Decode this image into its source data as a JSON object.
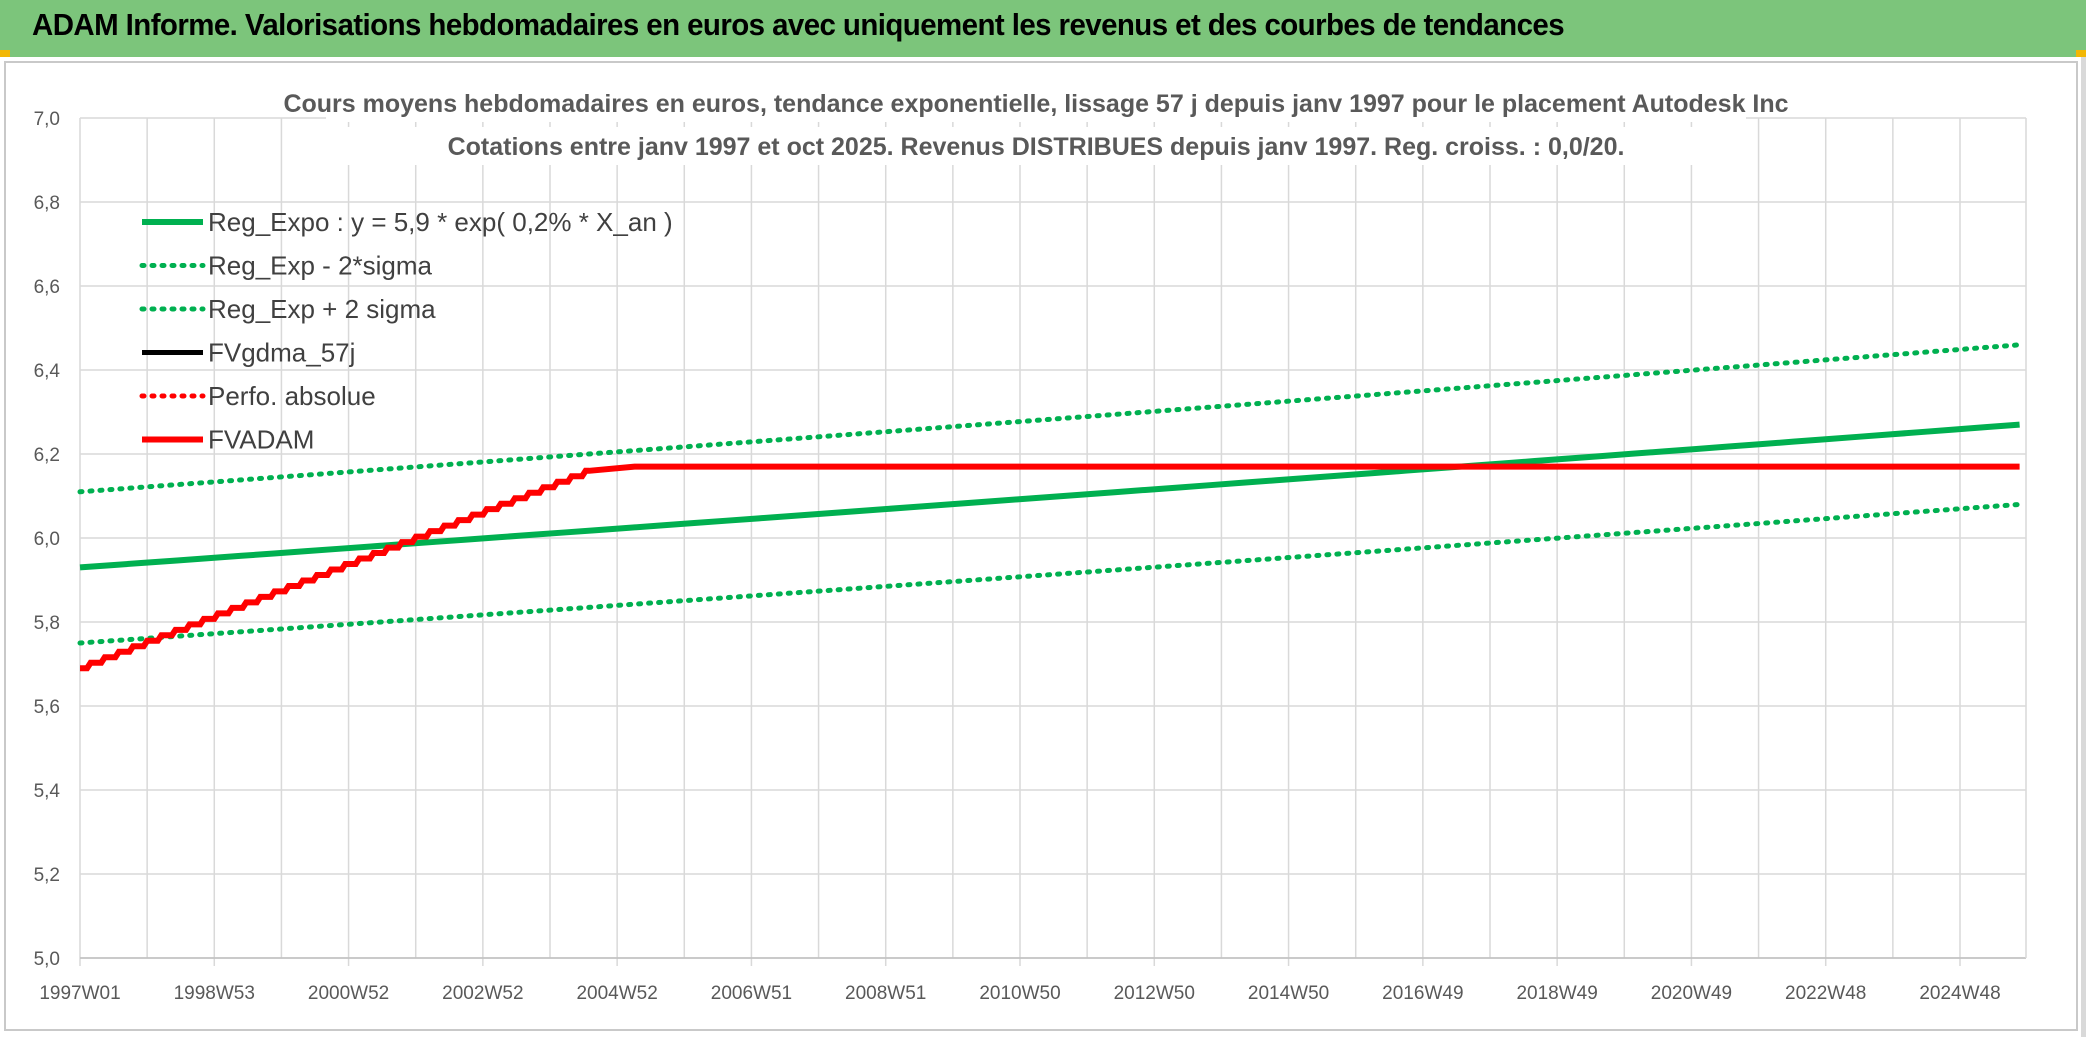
{
  "banner": {
    "title": "ADAM Informe. Valorisations hebdomadaires en euros avec uniquement les revenus et des courbes de tendances"
  },
  "colors": {
    "banner_bg": "#7cc57b",
    "green": "#00b050",
    "red": "#ff0000",
    "black": "#000000"
  },
  "chart_data": {
    "type": "line",
    "title_lines": [
      "Cours moyens hebdomadaires en euros, tendance exponentielle, lissage 57 j depuis janv 1997 pour le placement Autodesk Inc",
      "Cotations entre janv 1997 et oct 2025. Revenus DISTRIBUES depuis janv 1997. Reg. croiss. : 0,0/20."
    ],
    "x_tick_labels": [
      "1997W01",
      "1998W53",
      "2000W52",
      "2002W52",
      "2004W52",
      "2006W51",
      "2008W51",
      "2010W50",
      "2012W50",
      "2014W50",
      "2016W49",
      "2018W49",
      "2020W49",
      "2022W48",
      "2024W48"
    ],
    "x_range": [
      "1997W01",
      "2025W42"
    ],
    "y_ticks": [
      "5,0",
      "5,2",
      "5,4",
      "5,6",
      "5,8",
      "6,0",
      "6,2",
      "6,4",
      "6,6",
      "6,8",
      "7,0"
    ],
    "ylim": [
      5.0,
      7.0
    ],
    "grid": true,
    "legend_position": "top-left",
    "series": [
      {
        "name": "Reg_Expo : y = 5,9 * exp( 0,2% *  X_an )",
        "style": "solid-thick",
        "color": "#00b050",
        "points": [
          [
            "1997W01",
            5.93
          ],
          [
            "2025W42",
            6.27
          ]
        ]
      },
      {
        "name": "Reg_Exp - 2*sigma",
        "style": "dotted",
        "color": "#00b050",
        "points": [
          [
            "1997W01",
            5.75
          ],
          [
            "2025W42",
            6.08
          ]
        ]
      },
      {
        "name": "Reg_Exp + 2 sigma",
        "style": "dotted",
        "color": "#00b050",
        "points": [
          [
            "1997W01",
            6.11
          ],
          [
            "2025W42",
            6.46
          ]
        ]
      },
      {
        "name": "FVgdma_57j",
        "style": "solid",
        "color": "#000000",
        "points": []
      },
      {
        "name": "Perfo. absolue",
        "style": "dotted",
        "color": "#ff0000",
        "points": []
      },
      {
        "name": "FVADAM",
        "style": "stepped-thick",
        "color": "#ff0000",
        "points": [
          [
            "1997W01",
            5.69
          ],
          [
            "2004W30",
            6.16
          ],
          [
            "2005W13",
            6.17
          ],
          [
            "2025W42",
            6.17
          ]
        ]
      }
    ]
  }
}
